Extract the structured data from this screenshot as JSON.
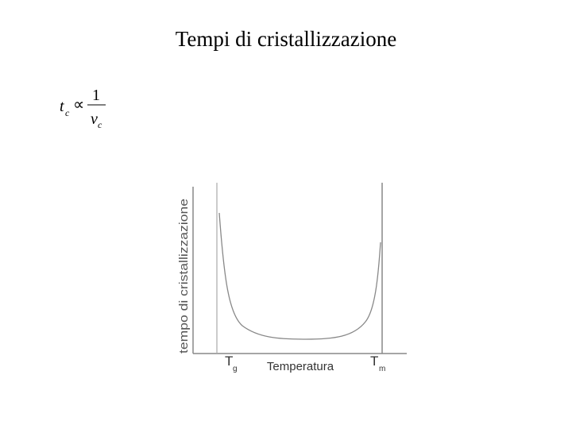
{
  "title": "Tempi di cristallizzazione",
  "formula": {
    "lhs": "t",
    "lhs_sub": "c",
    "relation": "∝",
    "numerator": "1",
    "denominator": "v",
    "denominator_sub": "c"
  },
  "diagram": {
    "y_axis_label": "tempo di cristallizzazione",
    "x_axis_label": "Temperatura",
    "markers": [
      {
        "label": "T",
        "sub": "g"
      },
      {
        "label": "T",
        "sub": "m"
      }
    ]
  }
}
